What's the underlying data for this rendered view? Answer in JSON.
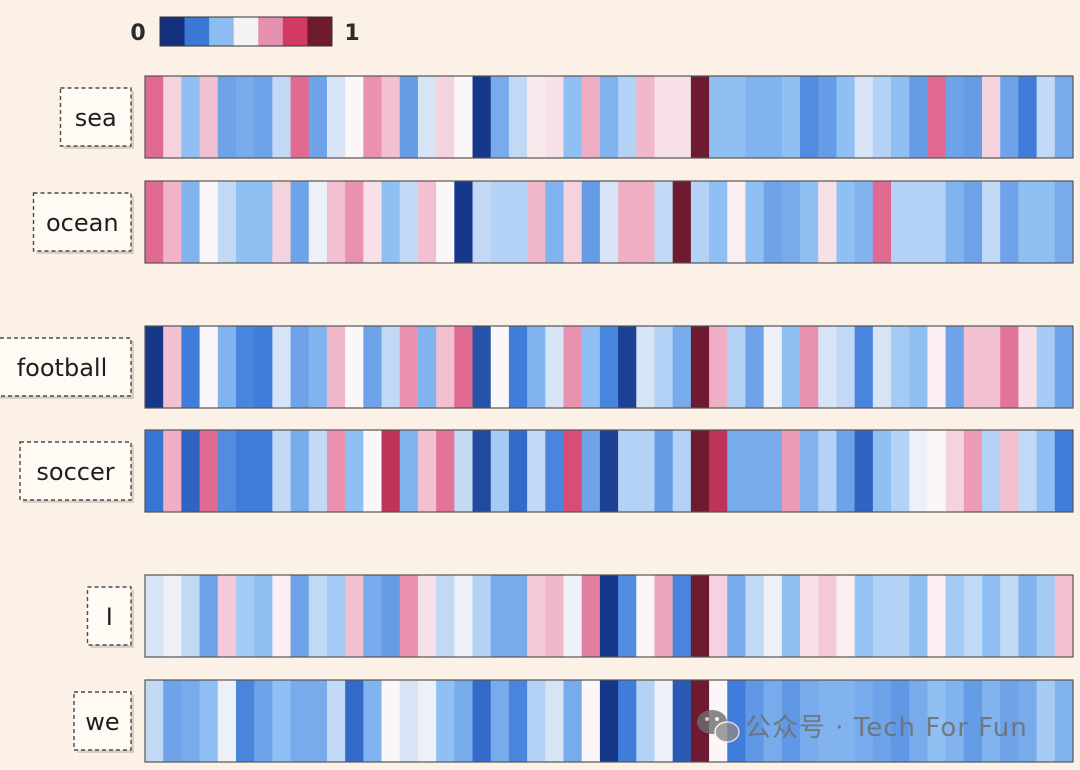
{
  "chart_data": {
    "type": "heatmap",
    "colorbar": {
      "min_label": "0",
      "max_label": "1",
      "colors": [
        "#14307f",
        "#3b78d8",
        "#8cbcf0",
        "#f3f3f5",
        "#e490ae",
        "#d23a63",
        "#6e1a31"
      ]
    },
    "colormap": {
      "stops": [
        [
          0.0,
          "#12307f"
        ],
        [
          0.17,
          "#3b78d9"
        ],
        [
          0.35,
          "#8fbff3"
        ],
        [
          0.5,
          "#fbf7f8"
        ],
        [
          0.64,
          "#f1b8cb"
        ],
        [
          0.8,
          "#e06a92"
        ],
        [
          0.9,
          "#d23a63"
        ],
        [
          1.0,
          "#6e1a31"
        ]
      ]
    },
    "rows": [
      {
        "word": "sea",
        "values": [
          0.8,
          0.58,
          0.35,
          0.62,
          0.28,
          0.3,
          0.28,
          0.42,
          0.8,
          0.28,
          0.45,
          0.5,
          0.72,
          0.62,
          0.26,
          0.45,
          0.58,
          0.5,
          0.02,
          0.3,
          0.42,
          0.53,
          0.55,
          0.35,
          0.66,
          0.32,
          0.4,
          0.64,
          0.55,
          0.55,
          1.0,
          0.35,
          0.35,
          0.32,
          0.32,
          0.35,
          0.22,
          0.26,
          0.35,
          0.45,
          0.4,
          0.35,
          0.26,
          0.8,
          0.28,
          0.26,
          0.58,
          0.28,
          0.18,
          0.42,
          0.3
        ]
      },
      {
        "word": "ocean",
        "values": [
          0.8,
          0.65,
          0.32,
          0.5,
          0.42,
          0.35,
          0.35,
          0.58,
          0.28,
          0.48,
          0.62,
          0.72,
          0.55,
          0.35,
          0.42,
          0.62,
          0.5,
          0.02,
          0.42,
          0.4,
          0.4,
          0.64,
          0.32,
          0.58,
          0.26,
          0.45,
          0.66,
          0.66,
          0.42,
          1.0,
          0.4,
          0.35,
          0.52,
          0.35,
          0.28,
          0.3,
          0.35,
          0.55,
          0.35,
          0.32,
          0.8,
          0.4,
          0.4,
          0.4,
          0.32,
          0.28,
          0.42,
          0.28,
          0.35,
          0.35,
          0.3
        ]
      },
      {
        "word": "football",
        "values": [
          0.02,
          0.62,
          0.18,
          0.5,
          0.32,
          0.2,
          0.18,
          0.45,
          0.28,
          0.32,
          0.64,
          0.5,
          0.28,
          0.42,
          0.72,
          0.32,
          0.62,
          0.8,
          0.08,
          0.5,
          0.18,
          0.32,
          0.45,
          0.72,
          0.35,
          0.2,
          0.04,
          0.45,
          0.4,
          0.3,
          1.0,
          0.66,
          0.4,
          0.28,
          0.48,
          0.35,
          0.72,
          0.45,
          0.42,
          0.2,
          0.45,
          0.38,
          0.35,
          0.52,
          0.28,
          0.62,
          0.62,
          0.78,
          0.55,
          0.38,
          0.28
        ]
      },
      {
        "word": "soccer",
        "values": [
          0.16,
          0.66,
          0.12,
          0.8,
          0.22,
          0.18,
          0.18,
          0.42,
          0.3,
          0.42,
          0.72,
          0.35,
          0.5,
          0.92,
          0.32,
          0.62,
          0.78,
          0.42,
          0.06,
          0.38,
          0.14,
          0.42,
          0.2,
          0.86,
          0.28,
          0.04,
          0.4,
          0.4,
          0.26,
          0.4,
          1.0,
          0.92,
          0.3,
          0.3,
          0.3,
          0.7,
          0.32,
          0.4,
          0.28,
          0.12,
          0.35,
          0.4,
          0.48,
          0.5,
          0.58,
          0.7,
          0.4,
          0.62,
          0.42,
          0.35,
          0.18
        ]
      },
      {
        "word": "I",
        "values": [
          0.45,
          0.48,
          0.42,
          0.28,
          0.6,
          0.38,
          0.35,
          0.52,
          0.28,
          0.42,
          0.38,
          0.62,
          0.3,
          0.26,
          0.72,
          0.55,
          0.42,
          0.48,
          0.4,
          0.3,
          0.3,
          0.6,
          0.64,
          0.48,
          0.76,
          0.02,
          0.22,
          0.5,
          0.68,
          0.2,
          1.0,
          0.58,
          0.3,
          0.42,
          0.48,
          0.35,
          0.55,
          0.6,
          0.52,
          0.36,
          0.4,
          0.4,
          0.35,
          0.52,
          0.38,
          0.42,
          0.35,
          0.42,
          0.32,
          0.38,
          0.62
        ]
      },
      {
        "word": "we",
        "values": [
          0.42,
          0.28,
          0.3,
          0.35,
          0.48,
          0.2,
          0.28,
          0.35,
          0.3,
          0.3,
          0.42,
          0.14,
          0.32,
          0.5,
          0.45,
          0.48,
          0.35,
          0.3,
          0.14,
          0.3,
          0.2,
          0.4,
          0.45,
          0.3,
          0.5,
          0.02,
          0.18,
          0.4,
          0.48,
          0.1,
          1.0,
          0.5,
          0.18,
          0.25,
          0.3,
          0.25,
          0.3,
          0.32,
          0.32,
          0.3,
          0.28,
          0.25,
          0.3,
          0.35,
          0.32,
          0.26,
          0.32,
          0.28,
          0.3,
          0.38,
          0.32
        ]
      }
    ]
  },
  "watermark": {
    "text": "公众号 · Tech For Fun",
    "icon": "wechat-icon"
  }
}
